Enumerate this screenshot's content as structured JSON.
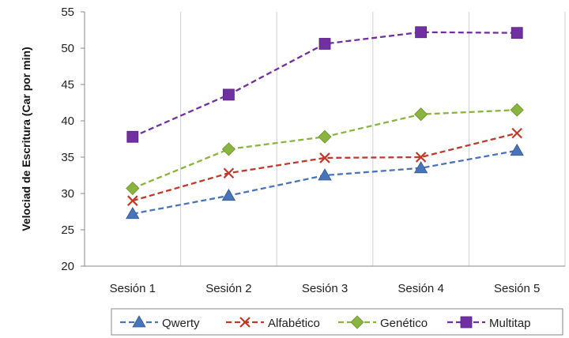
{
  "chart_data": {
    "type": "line",
    "categories": [
      "Sesión 1",
      "Sesión 2",
      "Sesión 3",
      "Sesión 4",
      "Sesión 5"
    ],
    "ylabel": "Velociad de Escritura (Car por min)",
    "xlabel": "",
    "ylim": [
      20,
      55
    ],
    "yticks": [
      20,
      25,
      30,
      35,
      40,
      45,
      50,
      55
    ],
    "grid": "vertical",
    "legend": "bottom",
    "series": [
      {
        "name": "Qwerty",
        "values": [
          27.2,
          29.7,
          32.5,
          33.5,
          35.9
        ],
        "color": "#4a74b8",
        "marker": "triangle"
      },
      {
        "name": "Alfabético",
        "values": [
          29.0,
          32.8,
          34.9,
          35.0,
          38.3
        ],
        "color": "#c0392b",
        "marker": "x"
      },
      {
        "name": "Genético",
        "values": [
          30.7,
          36.1,
          37.8,
          40.9,
          41.5
        ],
        "color": "#8ab440",
        "marker": "diamond"
      },
      {
        "name": "Multitap",
        "values": [
          37.8,
          43.6,
          50.6,
          52.2,
          52.1
        ],
        "color": "#7030a0",
        "marker": "square"
      }
    ]
  }
}
